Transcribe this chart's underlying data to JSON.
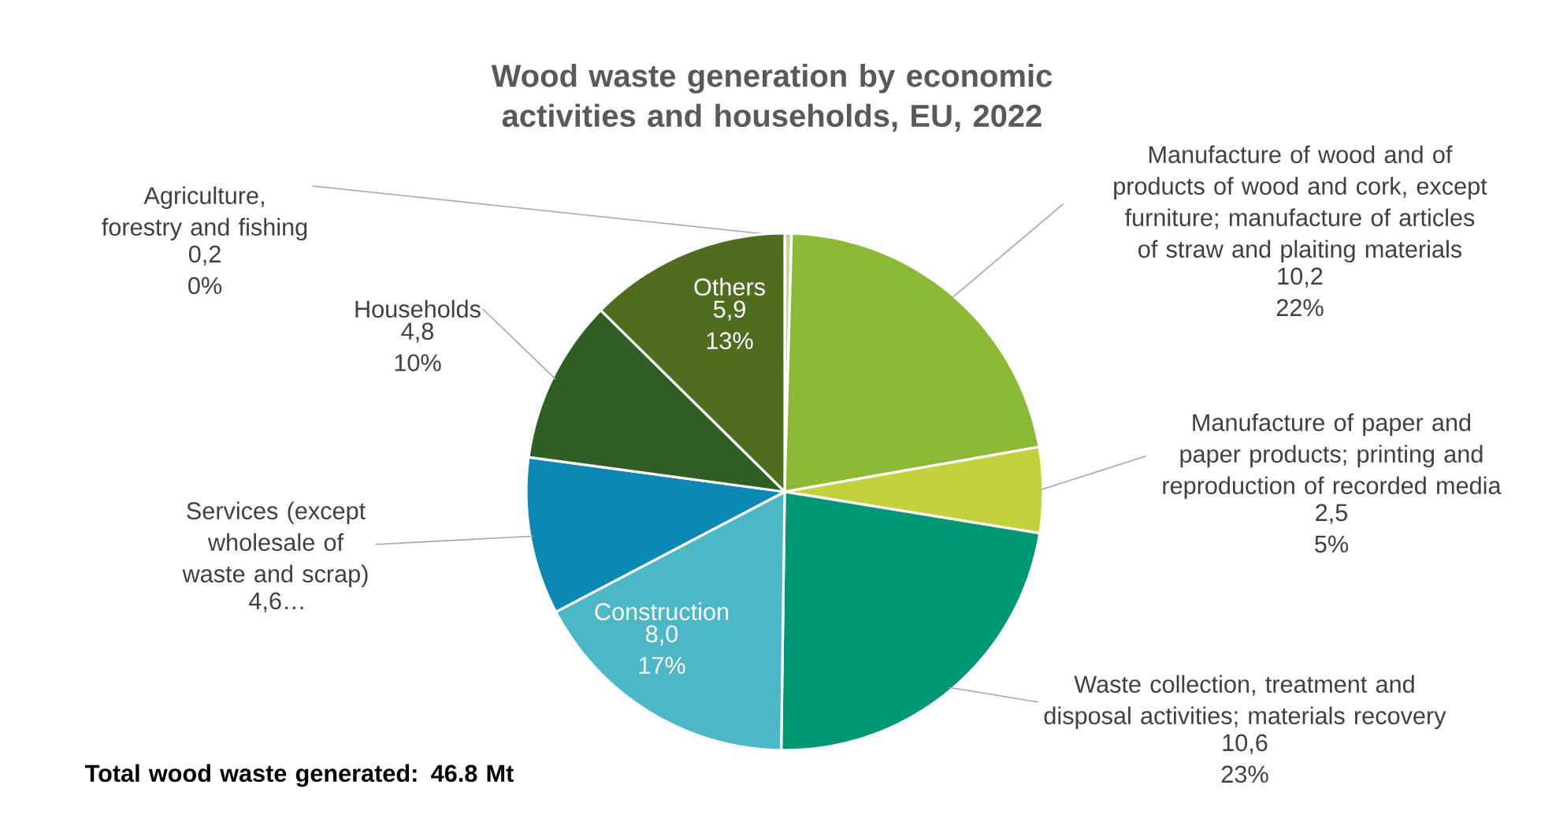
{
  "chart_data": {
    "type": "pie",
    "title": "Wood waste generation by economic activities and households, EU, 2022",
    "categories": [
      "Agriculture, forestry and fishing",
      "Manufacture of wood and of products of wood and cork, except furniture; manufacture of articles of straw and plaiting materials",
      "Manufacture of paper and paper products; printing and reproduction of recorded media",
      "Waste collection, treatment and disposal activities; materials recovery",
      "Construction",
      "Services (except wholesale of waste and scrap)",
      "Households",
      "Others"
    ],
    "values": [
      0.2,
      10.2,
      2.5,
      10.6,
      8.0,
      4.6,
      4.8,
      5.9
    ],
    "value_labels": [
      "0,2 0%",
      "10,2 22%",
      "2,5 5%",
      "10,6 23%",
      "8,0 17%",
      "4,6…",
      "4,8 10%",
      "5,9 13%"
    ],
    "colors": [
      "#c5d89a",
      "#8cb935",
      "#c2d23c",
      "#009774",
      "#4bb7c7",
      "#0b88b3",
      "#2f5f24",
      "#506d1f"
    ],
    "annotations": [
      "Total wood waste generated: 46.8 Mt"
    ]
  }
}
